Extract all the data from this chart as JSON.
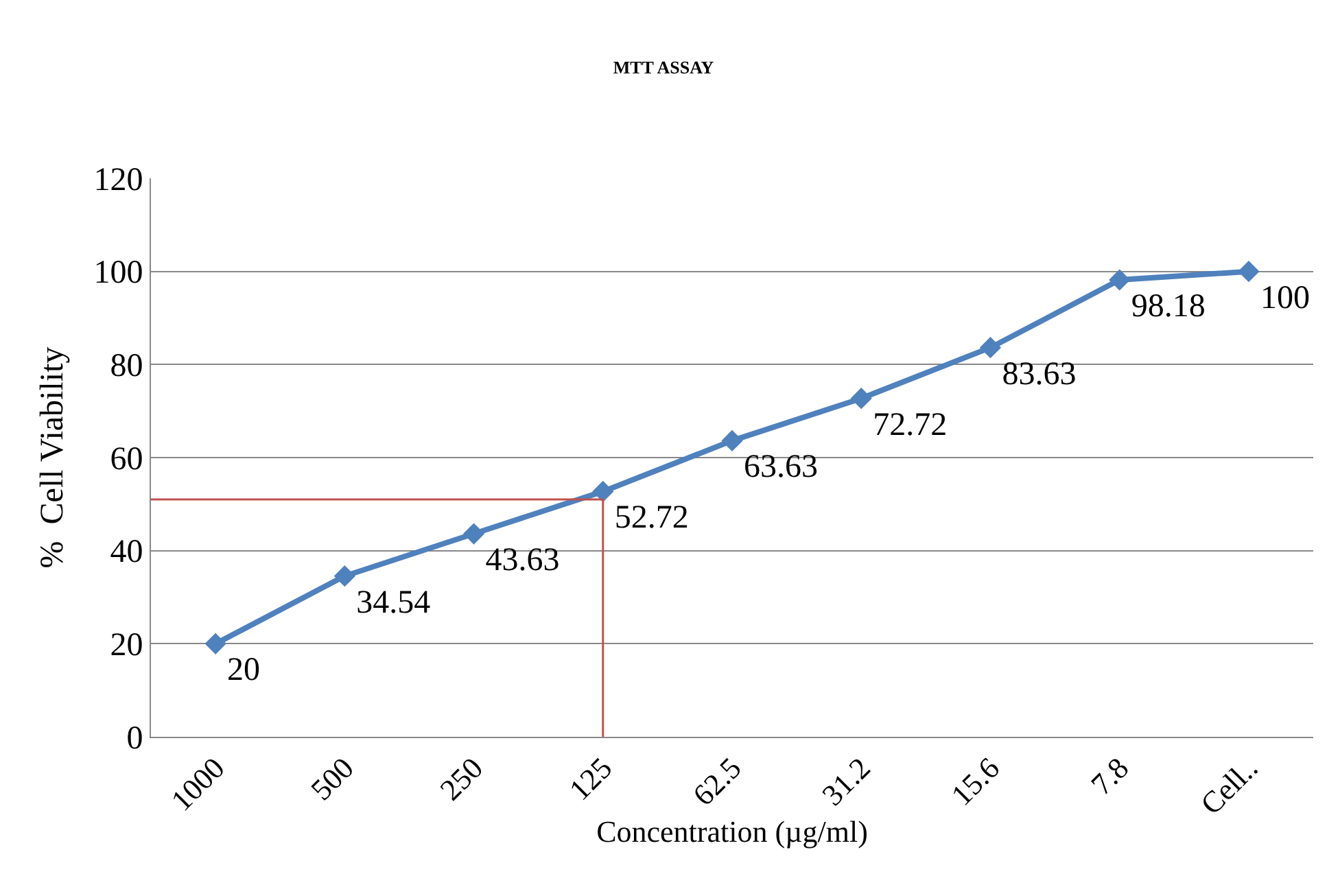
{
  "chart_data": {
    "type": "line",
    "title": "MTT ASSAY",
    "xlabel": "Concentration (µg/ml)",
    "ylabel": "%  Cell Viability",
    "categories": [
      "1000",
      "500",
      "250",
      "125",
      "62.5",
      "31.2",
      "15.6",
      "7.8",
      "Cell.."
    ],
    "series": [
      {
        "color": "#4f81bd",
        "values": [
          20,
          34.54,
          43.63,
          52.72,
          63.63,
          72.72,
          83.63,
          98.18,
          100
        ],
        "value_labels": [
          "20",
          "34.54",
          "43.63",
          "52.72",
          "63.63",
          "72.72",
          "83.63",
          "98.18",
          "100"
        ],
        "marker": "diamond"
      }
    ],
    "ref_lines": [
      {
        "axis": "y",
        "value": 51,
        "color": "#c0504d"
      },
      {
        "axis": "x",
        "value": "125",
        "color": "#c0504d"
      }
    ],
    "ylim": [
      0,
      120
    ],
    "yticks": [
      0,
      20,
      40,
      60,
      80,
      100,
      120
    ],
    "grid": "y",
    "line_style": "solid"
  }
}
